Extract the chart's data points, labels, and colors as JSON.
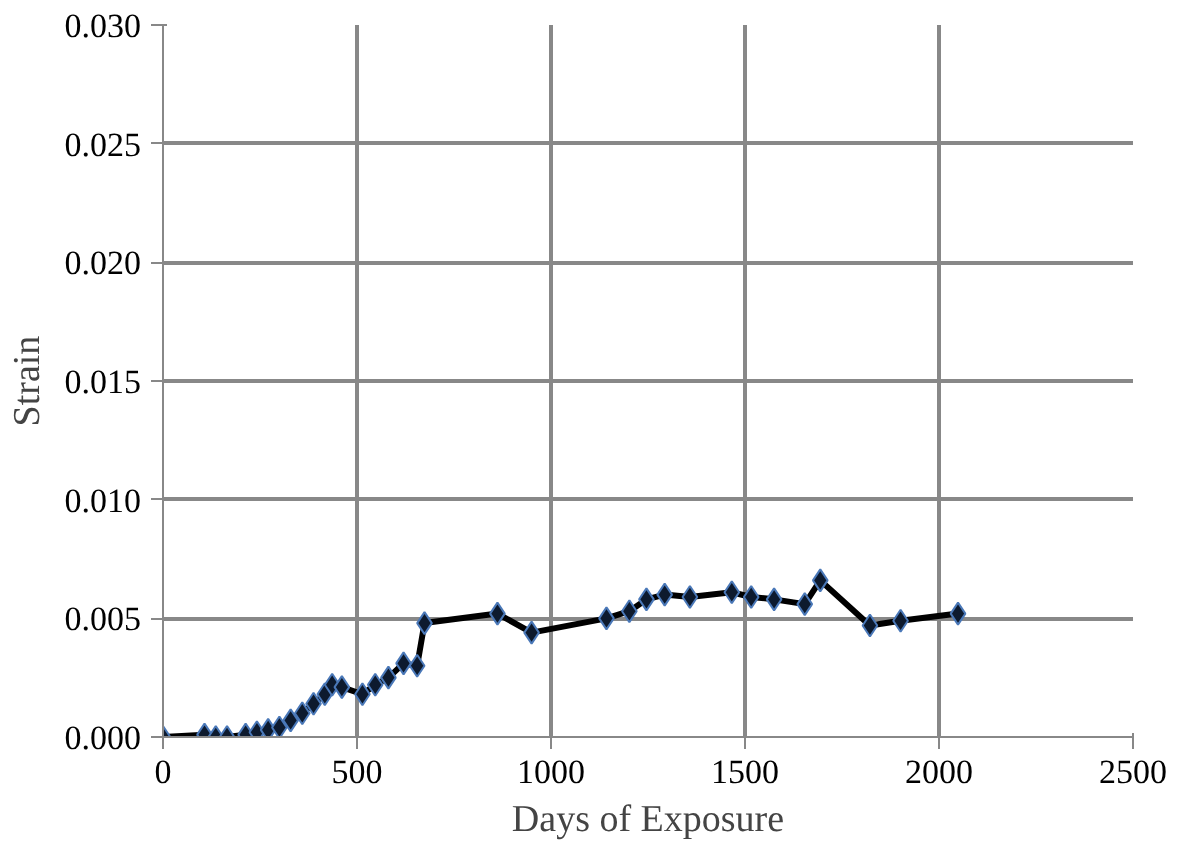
{
  "chart_data": {
    "type": "line",
    "xlabel": "Days of Exposure",
    "ylabel": "Strain",
    "xlim": [
      0,
      2500
    ],
    "xticks": [
      0,
      500,
      1000,
      1500,
      2000,
      2500
    ],
    "ylim": [
      0,
      0.03
    ],
    "yticks": [
      {
        "value": 0,
        "label": "0.000"
      },
      {
        "value": 0.005,
        "label": "0.005"
      },
      {
        "value": 0.01,
        "label": "0.010"
      },
      {
        "value": 0.015,
        "label": "0.015"
      },
      {
        "value": 0.02,
        "label": "0.020"
      },
      {
        "value": 0.025,
        "label": "0.025"
      },
      {
        "value": 0.03,
        "label": "0.030"
      }
    ],
    "grid": true,
    "marker": "diamond",
    "line_style": "solid",
    "series": [
      {
        "color": "#0d1a2e",
        "x": [
          0,
          107,
          136,
          165,
          213,
          242,
          271,
          300,
          329,
          359,
          388,
          417,
          436,
          461,
          514,
          547,
          581,
          620,
          655,
          674,
          862,
          950,
          1143,
          1202,
          1246,
          1293,
          1358,
          1466,
          1516,
          1575,
          1654,
          1694,
          1822,
          1901,
          2049
        ],
        "values": [
          0,
          0.0001,
          0,
          0,
          0.0001,
          0.0002,
          0.0003,
          0.0004,
          0.0007,
          0.001,
          0.0014,
          0.0018,
          0.0022,
          0.0021,
          0.0018,
          0.0022,
          0.0025,
          0.0031,
          0.003,
          0.0048,
          0.0052,
          0.0044,
          0.005,
          0.0053,
          0.0058,
          0.006,
          0.0059,
          0.0061,
          0.0059,
          0.0058,
          0.0056,
          0.0066,
          0.0047,
          0.0049,
          0.0052
        ]
      }
    ]
  }
}
